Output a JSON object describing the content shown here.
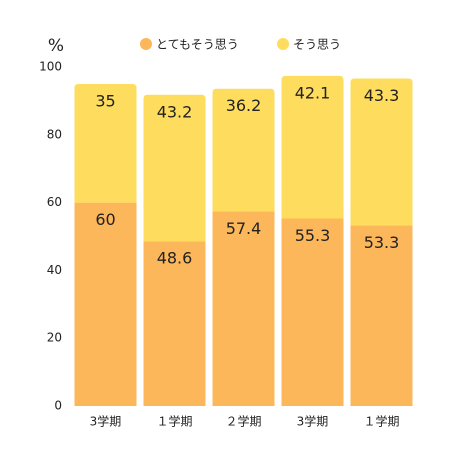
{
  "chart_data": {
    "type": "stacked_bar",
    "y_label": "%",
    "categories": [
      "3学期",
      "１学期",
      "２学期",
      "3学期",
      "１学期"
    ],
    "series": [
      {
        "name": "とてもそう思う",
        "color": "#fdb75b",
        "values": [
          60,
          48.6,
          57.4,
          55.3,
          53.3
        ]
      },
      {
        "name": "そう思う",
        "color": "#fedd5e",
        "values": [
          35,
          43.2,
          36.2,
          42.1,
          43.3
        ]
      }
    ],
    "ylim": [
      0,
      100
    ],
    "yticks": [
      0,
      20,
      40,
      60,
      80,
      100
    ],
    "grid": false
  }
}
